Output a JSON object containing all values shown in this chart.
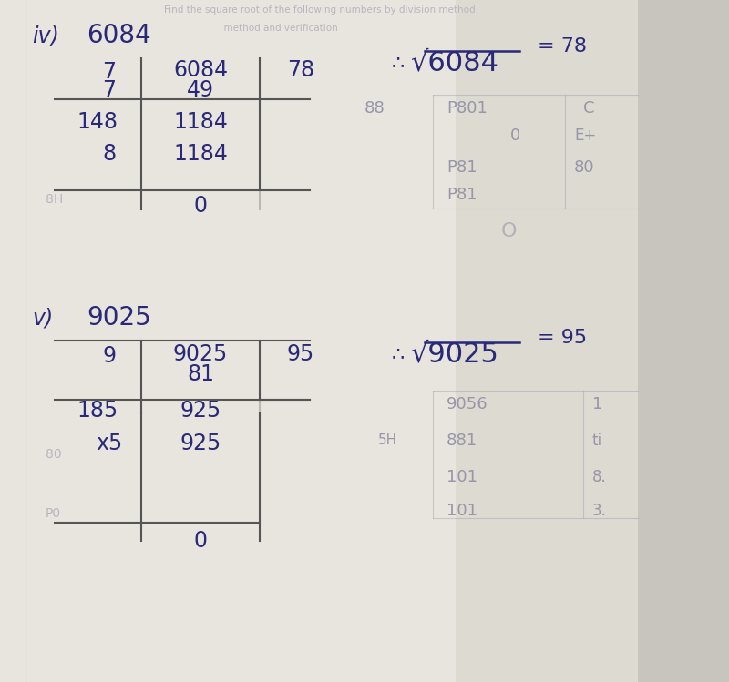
{
  "bg_color": "#c8c5be",
  "paper_color": "#dddbd5",
  "paper_right_color": "#cccac4",
  "text_color": "#2a2878",
  "faint_color": "#9896a8",
  "very_faint": "#b8b6c0",
  "title_iv": "iv)",
  "num_iv": "6084",
  "title_v": "v)",
  "num_v": "9025",
  "t1_c1": [
    "7",
    "7",
    "148",
    "8",
    ""
  ],
  "t1_c2": [
    "6084",
    "49",
    "1184",
    "1184",
    "0"
  ],
  "t1_c3": [
    "78",
    "",
    "",
    "",
    ""
  ],
  "t2_c1": [
    "9",
    "",
    "185",
    "x5",
    ""
  ],
  "t2_c2": [
    "9025",
    "81",
    "925",
    "925",
    "0"
  ],
  "t2_c3": [
    "95",
    "",
    "",
    "",
    ""
  ],
  "sqrt1": "√6084",
  "sqrt2": "√9025",
  "res1": "= 78",
  "res2": "= 95",
  "therefore": "∴",
  "header1": "Find the square root of the following numbers by division",
  "header2": "method.",
  "header3": "              method and verification"
}
